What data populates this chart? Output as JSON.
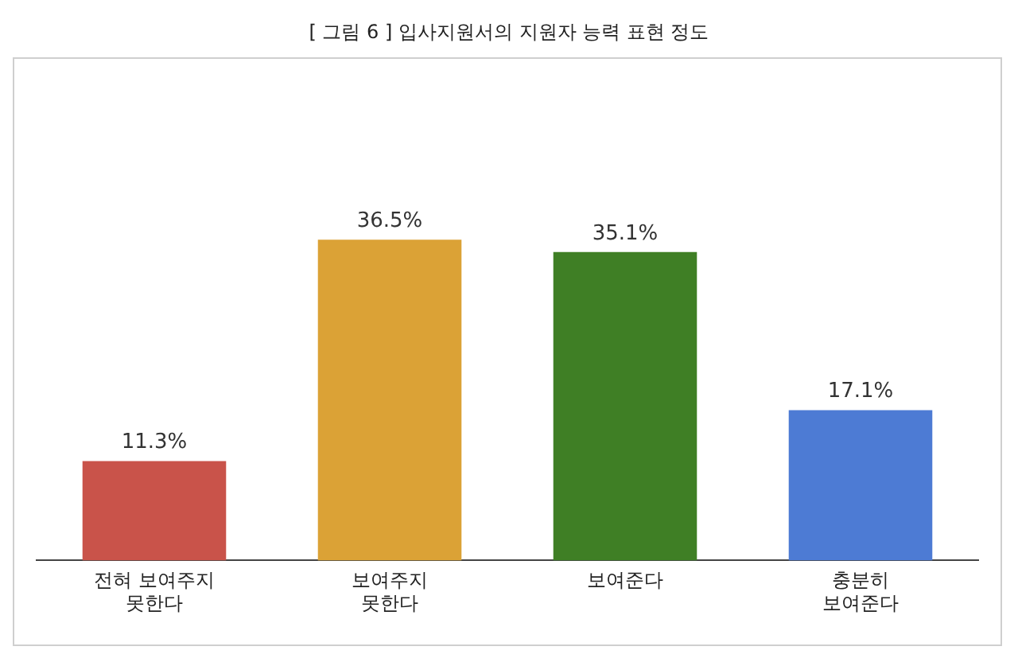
{
  "chart_data": {
    "type": "bar",
    "title": "[ 그림 6 ] 입사지원서의 지원자 능력 표현 정도",
    "categories": [
      "전혀 보여주지\n못한다",
      "보여주지\n못한다",
      "보여준다",
      "충분히\n보여준다"
    ],
    "values": [
      11.3,
      36.5,
      35.1,
      17.1
    ],
    "colors": [
      "#c9534a",
      "#dba236",
      "#3f7f25",
      "#4d7bd4"
    ],
    "value_labels": [
      "11.3%",
      "36.5%",
      "35.1%",
      "17.1%"
    ],
    "grid": false,
    "legend": false,
    "tick_labels": "x"
  }
}
